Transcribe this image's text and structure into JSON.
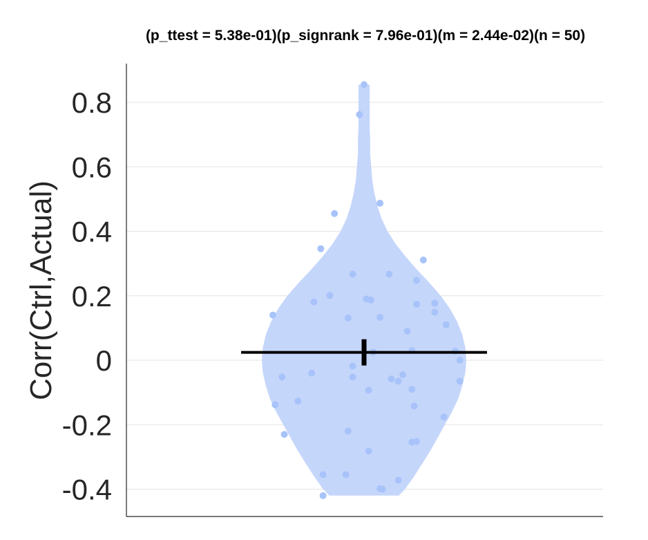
{
  "chart_data": {
    "type": "violin",
    "title": "(p_ttest = 5.38e-01)(p_signrank = 7.96e-01)(m = 2.44e-02)(n = 50)",
    "xlabel": "",
    "ylabel": "Corr(Ctrl,Actual)",
    "ylim": [
      -0.45,
      0.92
    ],
    "yticks": [
      -0.4,
      -0.2,
      0,
      0.2,
      0.4,
      0.6,
      0.8
    ],
    "ytick_labels": [
      "-0.4",
      "-0.2",
      "0",
      "0.2",
      "0.4",
      "0.6",
      "0.8"
    ],
    "grid": "horizontal",
    "mean": 0.0244,
    "n": 50,
    "colors": {
      "violin": "#c5d6fb",
      "points": "#a8c3fa",
      "mean_line": "#000000",
      "axis": "#262626",
      "grid": "#e3e3e3"
    },
    "violin_profile": [
      {
        "y": -0.42,
        "w": 0.34
      },
      {
        "y": -0.4,
        "w": 0.4
      },
      {
        "y": -0.36,
        "w": 0.49
      },
      {
        "y": -0.32,
        "w": 0.57
      },
      {
        "y": -0.28,
        "w": 0.65
      },
      {
        "y": -0.24,
        "w": 0.72
      },
      {
        "y": -0.2,
        "w": 0.79
      },
      {
        "y": -0.16,
        "w": 0.86
      },
      {
        "y": -0.12,
        "w": 0.92
      },
      {
        "y": -0.08,
        "w": 0.96
      },
      {
        "y": -0.04,
        "w": 0.99
      },
      {
        "y": 0.0,
        "w": 1.0
      },
      {
        "y": 0.04,
        "w": 0.99
      },
      {
        "y": 0.08,
        "w": 0.96
      },
      {
        "y": 0.12,
        "w": 0.91
      },
      {
        "y": 0.16,
        "w": 0.84
      },
      {
        "y": 0.2,
        "w": 0.75
      },
      {
        "y": 0.24,
        "w": 0.64
      },
      {
        "y": 0.28,
        "w": 0.52
      },
      {
        "y": 0.32,
        "w": 0.41
      },
      {
        "y": 0.36,
        "w": 0.31
      },
      {
        "y": 0.4,
        "w": 0.23
      },
      {
        "y": 0.44,
        "w": 0.17
      },
      {
        "y": 0.48,
        "w": 0.13
      },
      {
        "y": 0.52,
        "w": 0.1
      },
      {
        "y": 0.56,
        "w": 0.08
      },
      {
        "y": 0.6,
        "w": 0.07
      },
      {
        "y": 0.64,
        "w": 0.06
      },
      {
        "y": 0.68,
        "w": 0.06
      },
      {
        "y": 0.72,
        "w": 0.055
      },
      {
        "y": 0.76,
        "w": 0.055
      },
      {
        "y": 0.8,
        "w": 0.055
      },
      {
        "y": 0.855,
        "w": 0.055
      }
    ],
    "points": [
      {
        "x": 0.0,
        "y": 0.855
      },
      {
        "x": -0.02,
        "y": 0.762
      },
      {
        "x": 0.07,
        "y": 0.487
      },
      {
        "x": -0.13,
        "y": 0.455
      },
      {
        "x": -0.19,
        "y": 0.346
      },
      {
        "x": 0.26,
        "y": 0.311
      },
      {
        "x": -0.05,
        "y": 0.267
      },
      {
        "x": 0.11,
        "y": 0.267
      },
      {
        "x": 0.23,
        "y": 0.248
      },
      {
        "x": -0.15,
        "y": 0.201
      },
      {
        "x": 0.03,
        "y": 0.187
      },
      {
        "x": 0.01,
        "y": 0.19
      },
      {
        "x": -0.22,
        "y": 0.181
      },
      {
        "x": 0.31,
        "y": 0.177
      },
      {
        "x": 0.23,
        "y": 0.174
      },
      {
        "x": 0.31,
        "y": 0.149
      },
      {
        "x": -0.4,
        "y": 0.14
      },
      {
        "x": 0.07,
        "y": 0.133
      },
      {
        "x": -0.07,
        "y": 0.131
      },
      {
        "x": 0.36,
        "y": 0.11
      },
      {
        "x": 0.19,
        "y": 0.09
      },
      {
        "x": 0.04,
        "y": 0.025
      },
      {
        "x": 0.21,
        "y": 0.03
      },
      {
        "x": 0.4,
        "y": 0.028
      },
      {
        "x": 0.42,
        "y": 0.0
      },
      {
        "x": -0.05,
        "y": -0.018
      },
      {
        "x": -0.23,
        "y": -0.04
      },
      {
        "x": 0.17,
        "y": -0.045
      },
      {
        "x": -0.36,
        "y": -0.052
      },
      {
        "x": -0.05,
        "y": -0.052
      },
      {
        "x": 0.12,
        "y": -0.058
      },
      {
        "x": 0.15,
        "y": -0.065
      },
      {
        "x": 0.42,
        "y": -0.065
      },
      {
        "x": 0.02,
        "y": -0.093
      },
      {
        "x": 0.21,
        "y": -0.09
      },
      {
        "x": -0.29,
        "y": -0.127
      },
      {
        "x": -0.39,
        "y": -0.138
      },
      {
        "x": 0.22,
        "y": -0.142
      },
      {
        "x": 0.35,
        "y": -0.176
      },
      {
        "x": -0.07,
        "y": -0.22
      },
      {
        "x": -0.35,
        "y": -0.23
      },
      {
        "x": 0.21,
        "y": -0.254
      },
      {
        "x": 0.23,
        "y": -0.252
      },
      {
        "x": 0.02,
        "y": -0.282
      },
      {
        "x": -0.18,
        "y": -0.355
      },
      {
        "x": -0.08,
        "y": -0.355
      },
      {
        "x": 0.15,
        "y": -0.372
      },
      {
        "x": 0.07,
        "y": -0.398
      },
      {
        "x": 0.08,
        "y": -0.4
      },
      {
        "x": -0.18,
        "y": -0.42
      }
    ]
  }
}
